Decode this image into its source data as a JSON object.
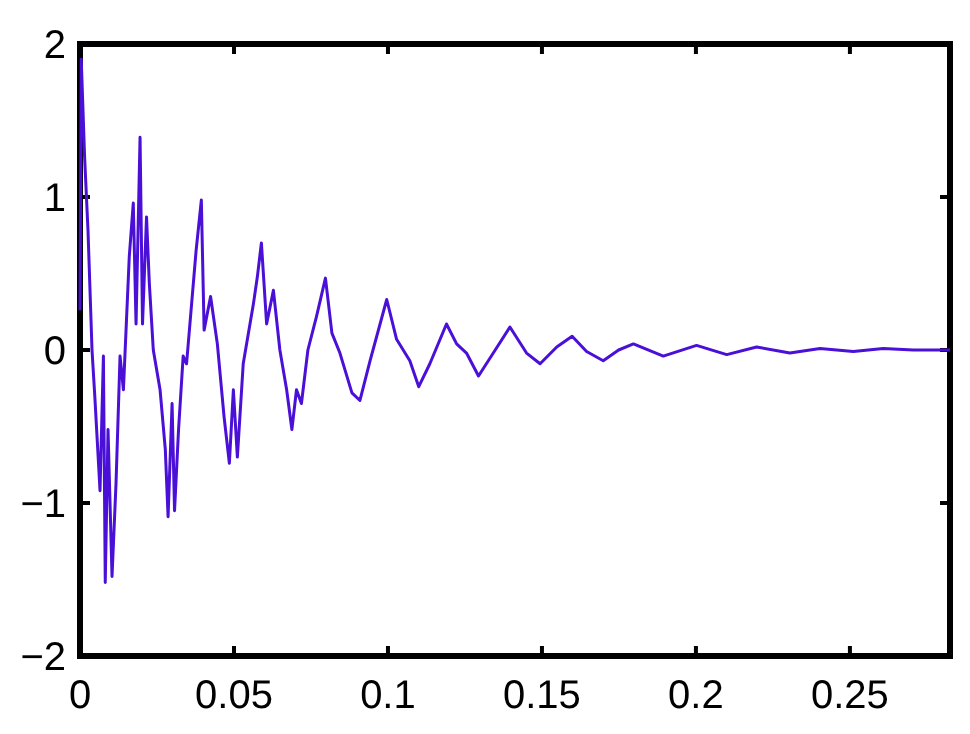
{
  "chart_data": {
    "type": "line",
    "xlim": [
      0,
      0.2825
    ],
    "ylim": [
      -2,
      2
    ],
    "xticks": [
      0,
      0.05,
      0.1,
      0.15,
      0.2,
      0.25
    ],
    "yticks": [
      -2,
      -1,
      0,
      1,
      2
    ],
    "marker": "none",
    "line_style": "solid",
    "series": [
      {
        "color": "#4a10d8",
        "x": [
          0,
          0.0004,
          0.0015,
          0.0026,
          0.0039,
          0.0048,
          0.0065,
          0.0076,
          0.0082,
          0.0091,
          0.0104,
          0.0117,
          0.013,
          0.0141,
          0.016,
          0.0173,
          0.0182,
          0.0195,
          0.0203,
          0.0216,
          0.0225,
          0.0238,
          0.026,
          0.0277,
          0.0286,
          0.0299,
          0.0307,
          0.032,
          0.0335,
          0.0346,
          0.0377,
          0.0394,
          0.0403,
          0.0424,
          0.0446,
          0.0468,
          0.0485,
          0.0498,
          0.0511,
          0.053,
          0.0563,
          0.0576,
          0.0589,
          0.0606,
          0.0628,
          0.0649,
          0.0671,
          0.0688,
          0.0703,
          0.0719,
          0.074,
          0.0768,
          0.0797,
          0.0818,
          0.0844,
          0.0883,
          0.0909,
          0.0942,
          0.0996,
          0.1028,
          0.1071,
          0.11,
          0.1136,
          0.119,
          0.1223,
          0.1255,
          0.1294,
          0.1342,
          0.1396,
          0.145,
          0.1494,
          0.1548,
          0.1598,
          0.1645,
          0.1699,
          0.1749,
          0.1797,
          0.1894,
          0.2002,
          0.21,
          0.2197,
          0.2305,
          0.2403,
          0.2511,
          0.2608,
          0.2706,
          0.2825
        ],
        "values": [
          0.26,
          1.9,
          1.26,
          0.78,
          0,
          -0.3,
          -0.92,
          -0.04,
          -1.52,
          -0.52,
          -1.48,
          -0.87,
          -0.04,
          -0.26,
          0.61,
          0.96,
          0.17,
          1.39,
          0.17,
          0.87,
          0.44,
          0,
          -0.26,
          -0.65,
          -1.09,
          -0.35,
          -1.05,
          -0.52,
          -0.04,
          -0.09,
          0.65,
          0.98,
          0.13,
          0.35,
          0.04,
          -0.44,
          -0.74,
          -0.26,
          -0.7,
          -0.09,
          0.3,
          0.48,
          0.7,
          0.17,
          0.39,
          0,
          -0.26,
          -0.52,
          -0.26,
          -0.35,
          0,
          0.22,
          0.47,
          0.11,
          -0.02,
          -0.28,
          -0.33,
          -0.07,
          0.33,
          0.07,
          -0.07,
          -0.24,
          -0.09,
          0.17,
          0.04,
          -0.02,
          -0.17,
          -0.02,
          0.15,
          -0.02,
          -0.09,
          0.02,
          0.09,
          -0.01,
          -0.07,
          0,
          0.04,
          -0.04,
          0.03,
          -0.03,
          0.02,
          -0.02,
          0.01,
          -0.01,
          0.01,
          0,
          0
        ]
      }
    ]
  }
}
